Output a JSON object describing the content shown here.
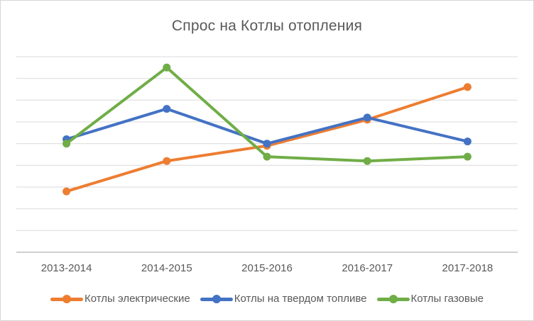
{
  "window": {
    "background": "#ffffff",
    "border_color": "#d6d6d6"
  },
  "chart_data": {
    "type": "line",
    "title": "Спрос на Котлы отопления",
    "categories": [
      "2013-2014",
      "2014-2015",
      "2015-2016",
      "2016-2017",
      "2017-2018"
    ],
    "series": [
      {
        "name": "Котлы электрические",
        "color": "#ED7D31",
        "values": [
          28,
          42,
          49,
          61,
          76
        ]
      },
      {
        "name": "Котлы на твердом топливе",
        "color": "#4472C4",
        "values": [
          52,
          66,
          50,
          62,
          51
        ]
      },
      {
        "name": "Котлы газовые",
        "color": "#70AD47",
        "values": [
          50,
          85,
          44,
          42,
          44
        ]
      }
    ],
    "xlabel": "",
    "ylabel": "",
    "ylim": [
      0,
      90
    ],
    "y_grid_step": 10,
    "y_tick_labels_visible": false,
    "grid": true,
    "legend_position": "bottom",
    "gridline_color": "#D9D9D9",
    "axis_line_color": "#BFBFBF",
    "text_color": "#595959",
    "line_width": 4,
    "marker_radius": 5.5
  }
}
